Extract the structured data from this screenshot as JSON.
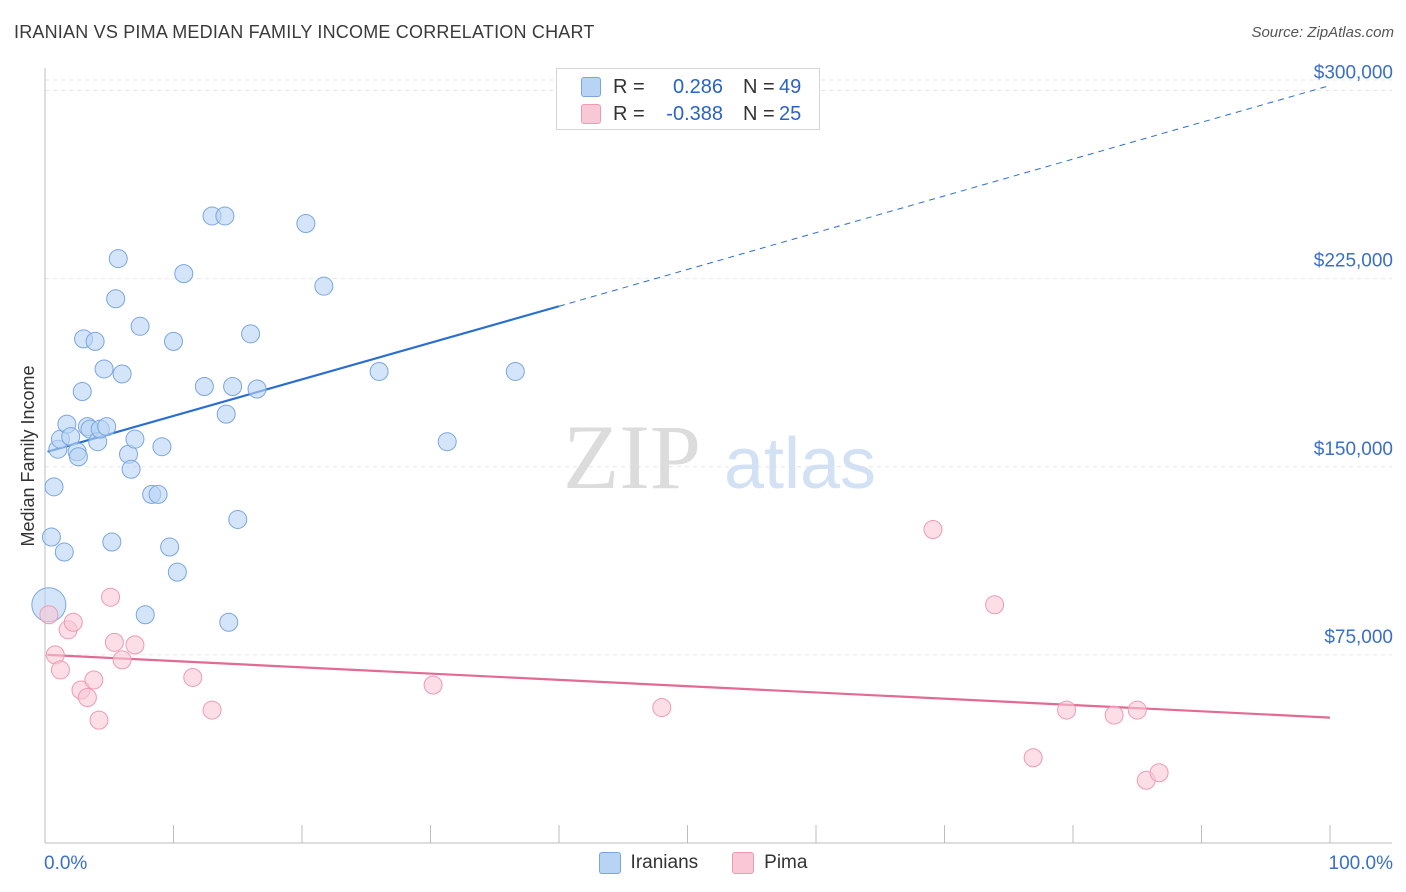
{
  "title": "IRANIAN VS PIMA MEDIAN FAMILY INCOME CORRELATION CHART",
  "source": "Source: ZipAtlas.com",
  "watermark": {
    "zip": "ZIP",
    "atlas": "atlas"
  },
  "colors": {
    "iranians_fill": "#b9d3f5",
    "iranians_stroke": "#7aa6e0",
    "iranians_line": "#2a6fd0",
    "pima_fill": "#f9c8d6",
    "pima_stroke": "#ee9ab3",
    "pima_line": "#e36a93",
    "tick_label": "#3a6fc8",
    "grid": "#e6e6e6"
  },
  "correlation_legend": [
    {
      "series": "Iranians",
      "r_label": "R =",
      "r_value": "0.286",
      "n_label": "N =",
      "n_value": "49"
    },
    {
      "series": "Pima",
      "r_label": "R =",
      "r_value": "-0.388",
      "n_label": "N =",
      "n_value": "25"
    }
  ],
  "chart_data": {
    "type": "scatter",
    "ylabel": "Median Family Income",
    "xlim": [
      0,
      100
    ],
    "ylim": [
      0,
      305000
    ],
    "x_tick_labels": [
      "0.0%",
      "100.0%"
    ],
    "y_ticks": [
      {
        "value": 75000,
        "label": "$75,000"
      },
      {
        "value": 150000,
        "label": "$150,000"
      },
      {
        "value": 225000,
        "label": "$225,000"
      },
      {
        "value": 300000,
        "label": "$300,000"
      }
    ],
    "grid": true,
    "legend_position": "bottom-center",
    "series": [
      {
        "name": "Iranians",
        "trend": {
          "x_start": 0.2,
          "y_start": 156000,
          "x_solid_end": 40,
          "y_solid_end": 214000,
          "x_end": 100,
          "y_end": 302000
        },
        "points": [
          {
            "x": 0.3,
            "y": 95000,
            "big": true
          },
          {
            "x": 0.5,
            "y": 122000
          },
          {
            "x": 0.7,
            "y": 142000
          },
          {
            "x": 1.0,
            "y": 157000
          },
          {
            "x": 1.2,
            "y": 161000
          },
          {
            "x": 1.5,
            "y": 116000
          },
          {
            "x": 1.7,
            "y": 167000
          },
          {
            "x": 2.0,
            "y": 162000
          },
          {
            "x": 2.5,
            "y": 156000
          },
          {
            "x": 2.6,
            "y": 154000
          },
          {
            "x": 2.9,
            "y": 180000
          },
          {
            "x": 3.0,
            "y": 201000
          },
          {
            "x": 3.3,
            "y": 166000
          },
          {
            "x": 3.5,
            "y": 165000
          },
          {
            "x": 3.9,
            "y": 200000
          },
          {
            "x": 4.1,
            "y": 160000
          },
          {
            "x": 4.3,
            "y": 165000
          },
          {
            "x": 4.6,
            "y": 189000
          },
          {
            "x": 4.8,
            "y": 166000
          },
          {
            "x": 5.2,
            "y": 120000
          },
          {
            "x": 5.5,
            "y": 217000
          },
          {
            "x": 5.7,
            "y": 233000
          },
          {
            "x": 6.0,
            "y": 187000
          },
          {
            "x": 6.5,
            "y": 155000
          },
          {
            "x": 6.7,
            "y": 149000
          },
          {
            "x": 7.0,
            "y": 161000
          },
          {
            "x": 7.4,
            "y": 206000
          },
          {
            "x": 7.8,
            "y": 91000
          },
          {
            "x": 8.3,
            "y": 139000
          },
          {
            "x": 8.8,
            "y": 139000
          },
          {
            "x": 9.1,
            "y": 158000
          },
          {
            "x": 9.7,
            "y": 118000
          },
          {
            "x": 10.0,
            "y": 200000
          },
          {
            "x": 10.3,
            "y": 108000
          },
          {
            "x": 10.8,
            "y": 227000
          },
          {
            "x": 12.4,
            "y": 182000
          },
          {
            "x": 13.0,
            "y": 250000
          },
          {
            "x": 14.0,
            "y": 250000
          },
          {
            "x": 14.1,
            "y": 171000
          },
          {
            "x": 14.3,
            "y": 88000
          },
          {
            "x": 14.6,
            "y": 182000
          },
          {
            "x": 15.0,
            "y": 129000
          },
          {
            "x": 16.0,
            "y": 203000
          },
          {
            "x": 16.5,
            "y": 181000
          },
          {
            "x": 20.3,
            "y": 247000
          },
          {
            "x": 21.7,
            "y": 222000
          },
          {
            "x": 26.0,
            "y": 188000
          },
          {
            "x": 31.3,
            "y": 160000
          },
          {
            "x": 36.6,
            "y": 188000
          }
        ]
      },
      {
        "name": "Pima",
        "trend": {
          "x_start": 0.2,
          "y_start": 75000,
          "x_end": 100,
          "y_end": 50000
        },
        "points": [
          {
            "x": 0.3,
            "y": 91000
          },
          {
            "x": 0.8,
            "y": 75000
          },
          {
            "x": 1.2,
            "y": 69000
          },
          {
            "x": 1.8,
            "y": 85000
          },
          {
            "x": 2.2,
            "y": 88000
          },
          {
            "x": 2.8,
            "y": 61000
          },
          {
            "x": 3.3,
            "y": 58000
          },
          {
            "x": 3.8,
            "y": 65000
          },
          {
            "x": 4.2,
            "y": 49000
          },
          {
            "x": 5.1,
            "y": 98000
          },
          {
            "x": 5.4,
            "y": 80000
          },
          {
            "x": 6.0,
            "y": 73000
          },
          {
            "x": 7.0,
            "y": 79000
          },
          {
            "x": 11.5,
            "y": 66000
          },
          {
            "x": 13.0,
            "y": 53000
          },
          {
            "x": 30.2,
            "y": 63000
          },
          {
            "x": 48.0,
            "y": 54000
          },
          {
            "x": 69.1,
            "y": 125000
          },
          {
            "x": 73.9,
            "y": 95000
          },
          {
            "x": 76.9,
            "y": 34000
          },
          {
            "x": 79.5,
            "y": 53000
          },
          {
            "x": 83.2,
            "y": 51000
          },
          {
            "x": 85.0,
            "y": 53000
          },
          {
            "x": 85.7,
            "y": 25000
          },
          {
            "x": 86.7,
            "y": 28000
          }
        ]
      }
    ]
  }
}
